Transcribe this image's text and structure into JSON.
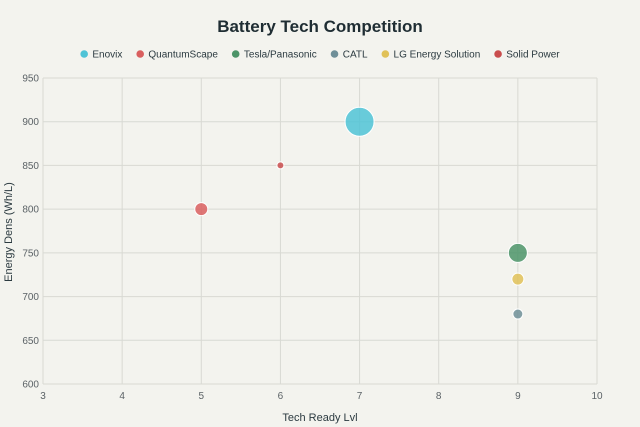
{
  "chart_data": {
    "type": "scatter",
    "title": "Battery Tech Competition",
    "xlabel": "Tech Ready Lvl",
    "ylabel": "Energy Dens (Wh/L)",
    "xlim": [
      3,
      10
    ],
    "ylim": [
      600,
      950
    ],
    "xticks": [
      "3",
      "4",
      "5",
      "6",
      "7",
      "8",
      "9",
      "10"
    ],
    "yticks": [
      "600",
      "650",
      "700",
      "750",
      "800",
      "850",
      "900",
      "950"
    ],
    "grid": true,
    "legend_position": "top",
    "series": [
      {
        "name": "Enovix",
        "color": "#4fc3d6",
        "points": [
          {
            "x": 7,
            "y": 900,
            "size": 28
          }
        ]
      },
      {
        "name": "QuantumScape",
        "color": "#d95f5f",
        "points": [
          {
            "x": 5,
            "y": 800,
            "size": 12
          }
        ]
      },
      {
        "name": "Tesla/Panasonic",
        "color": "#4c9468",
        "points": [
          {
            "x": 9,
            "y": 750,
            "size": 18
          }
        ]
      },
      {
        "name": "CATL",
        "color": "#6f8f98",
        "points": [
          {
            "x": 9,
            "y": 680,
            "size": 9
          }
        ]
      },
      {
        "name": "LG Energy Solution",
        "color": "#e0c158",
        "points": [
          {
            "x": 9,
            "y": 720,
            "size": 11
          }
        ]
      },
      {
        "name": "Solid Power",
        "color": "#c94d4d",
        "points": [
          {
            "x": 6,
            "y": 850,
            "size": 6
          }
        ]
      }
    ]
  }
}
